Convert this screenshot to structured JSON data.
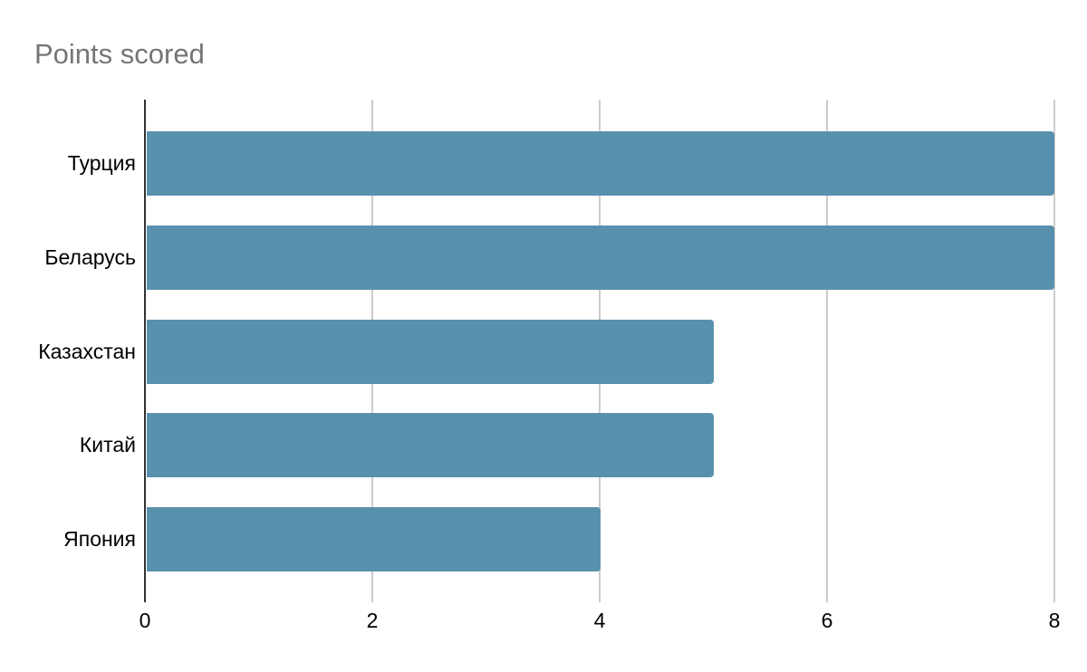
{
  "title": "Points scored",
  "colors": {
    "background": "#ffffff",
    "title_text": "#757575",
    "bar": "#5891ad",
    "axis_line": "#333333",
    "gridline": "#cccccc",
    "category_label": "#000000",
    "tick_label": "#000000"
  },
  "chart_data": {
    "type": "bar",
    "orientation": "horizontal",
    "title": "Points scored",
    "categories": [
      "Турция",
      "Беларусь",
      "Казахстан",
      "Китай",
      "Япония"
    ],
    "values": [
      8,
      8,
      5,
      5,
      4
    ],
    "x_ticks": [
      "0",
      "2",
      "4",
      "6",
      "8"
    ],
    "xlim": [
      0,
      8
    ],
    "xlabel": "",
    "ylabel": "",
    "legend_position": "none",
    "grid": true
  }
}
